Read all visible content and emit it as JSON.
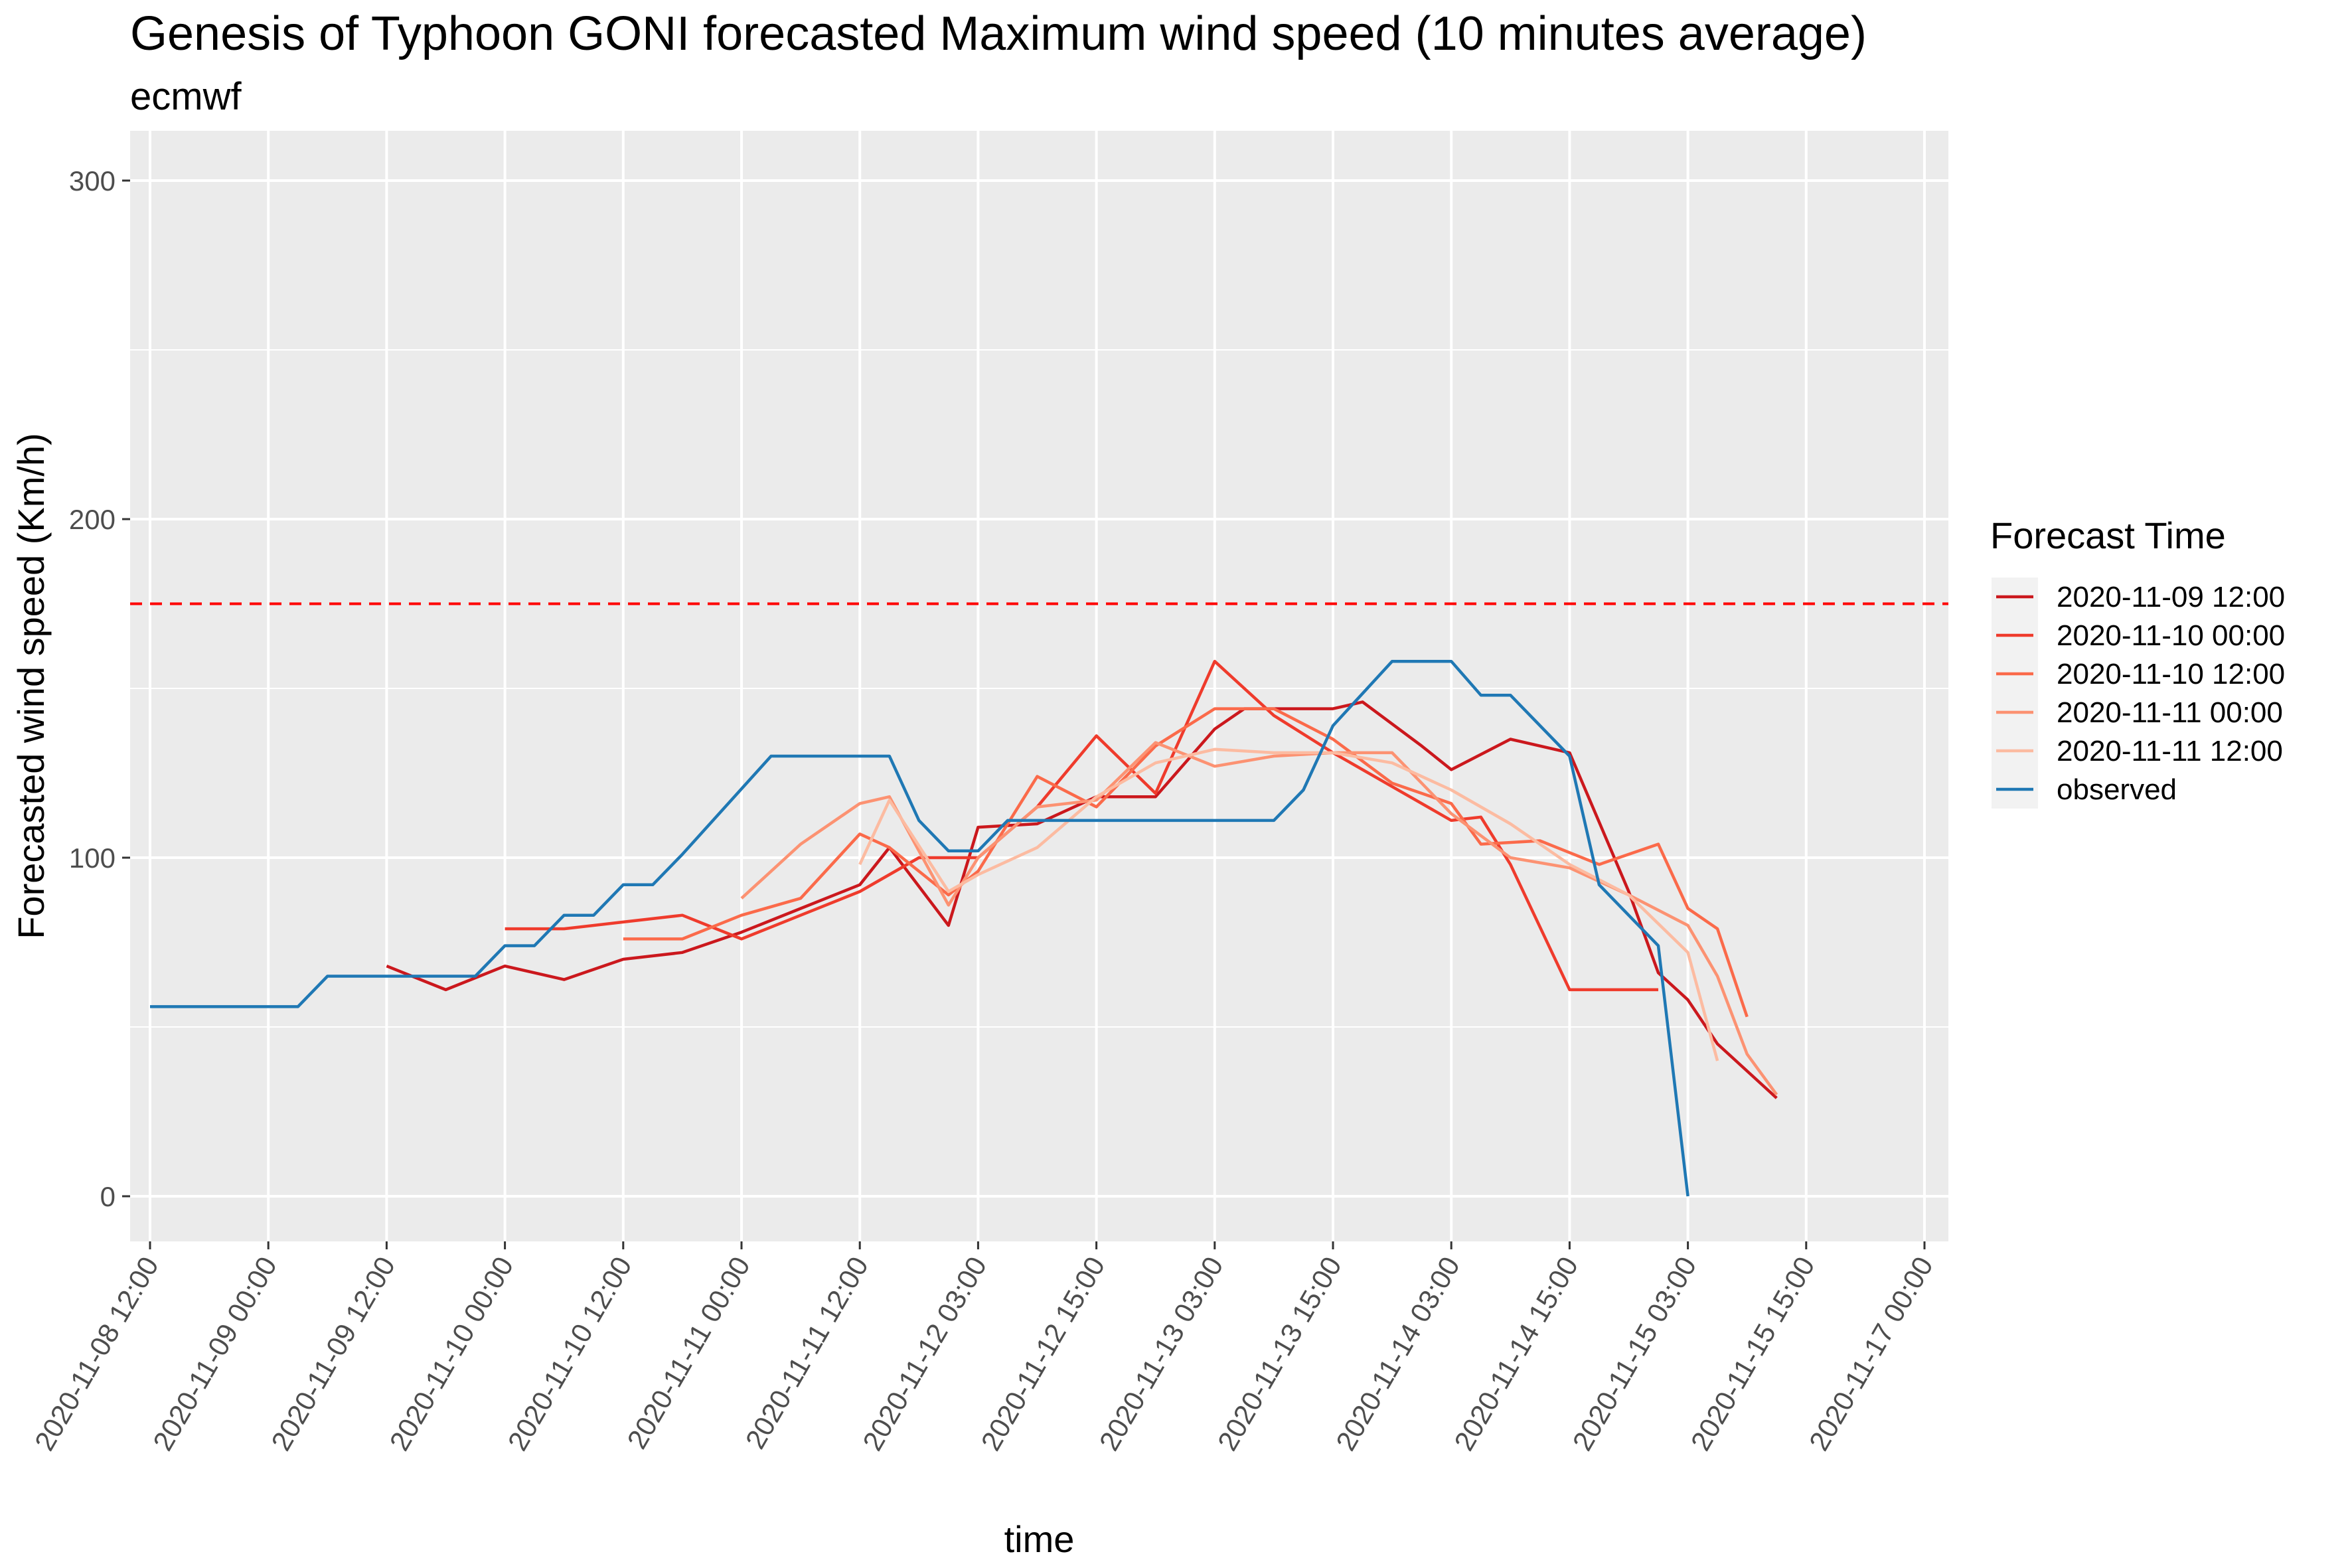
{
  "chart_data": {
    "type": "line",
    "title": "Genesis of Typhoon GONI forecasted Maximum wind speed (10 minutes average)",
    "subtitle": "ecmwf",
    "xlabel": "time",
    "ylabel": "Forecasted wind speed (Km/h)",
    "ylim": [
      -14,
      314
    ],
    "y_ticks": [
      0,
      100,
      200,
      300
    ],
    "x_ticks": [
      "2020-11-08 12:00",
      "2020-11-09 00:00",
      "2020-11-09 12:00",
      "2020-11-10 00:00",
      "2020-11-10 12:00",
      "2020-11-11 00:00",
      "2020-11-11 12:00",
      "2020-11-12 03:00",
      "2020-11-12 15:00",
      "2020-11-13 03:00",
      "2020-11-13 15:00",
      "2020-11-14 03:00",
      "2020-11-14 15:00",
      "2020-11-15 03:00",
      "2020-11-15 15:00",
      "2020-11-17 00:00"
    ],
    "threshold": {
      "value": 175,
      "color": "#ff0000",
      "style": "dashed"
    },
    "grid": true,
    "legend_title": "Forecast Time",
    "legend_position": "right",
    "background": "#ebebeb",
    "series": [
      {
        "name": "2020-11-09  12:00",
        "color": "#cb181d",
        "x": [
          2,
          2.5,
          3,
          3.5,
          4,
          4.5,
          5,
          5.5,
          6,
          6.25,
          6.75,
          7,
          7.5,
          8,
          8.5,
          9,
          9.25,
          9.75,
          10,
          10.25,
          10.75,
          11,
          11.5,
          12,
          12.5,
          12.75,
          13,
          13.25,
          13.75,
          14.25,
          14.5
        ],
        "y": [
          68,
          61,
          68,
          64,
          70,
          72,
          78,
          85,
          92,
          103,
          80,
          109,
          110,
          118,
          118,
          138,
          144,
          144,
          144,
          146,
          133,
          126,
          135,
          131,
          90,
          66,
          58,
          45,
          29,
          null,
          null
        ]
      },
      {
        "name": "2020-11-10  00:00",
        "color": "#ef3b2c",
        "x": [
          3,
          3.5,
          4,
          4.5,
          5,
          5.5,
          6,
          6.5,
          7,
          7.5,
          8,
          8.5,
          9,
          9.5,
          10,
          10.5,
          11,
          11.25,
          11.5,
          12,
          12.25,
          12.75
        ],
        "y": [
          79,
          79,
          81,
          83,
          76,
          83,
          90,
          100,
          100,
          115,
          136,
          119,
          158,
          142,
          131,
          121,
          111,
          112,
          98,
          61,
          61,
          61
        ]
      },
      {
        "name": "2020-11-10  12:00",
        "color": "#fb6a4a",
        "x": [
          4,
          4.5,
          5,
          5.5,
          6,
          6.25,
          6.75,
          7,
          7.5,
          8,
          8.5,
          9,
          9.5,
          10,
          10.5,
          11,
          11.25,
          11.75,
          12.25,
          12.75,
          13,
          13.25,
          13.5
        ],
        "y": [
          76,
          76,
          83,
          88,
          107,
          103,
          89,
          96,
          124,
          115,
          133,
          144,
          144,
          135,
          122,
          116,
          104,
          105,
          98,
          104,
          85,
          79,
          53
        ]
      },
      {
        "name": "2020-11-11  00:00",
        "color": "#fc9272",
        "x": [
          5,
          5.5,
          6,
          6.25,
          6.75,
          7,
          7.5,
          8,
          8.5,
          9,
          9.5,
          10,
          10.5,
          11,
          11.5,
          12,
          12.5,
          13,
          13.25,
          13.5,
          13.75
        ],
        "y": [
          88,
          104,
          116,
          118,
          86,
          100,
          115,
          117,
          134,
          127,
          130,
          131,
          131,
          113,
          100,
          97,
          89,
          80,
          65,
          42,
          30
        ]
      },
      {
        "name": "2020-11-11  12:00",
        "color": "#fcbba1",
        "x": [
          6,
          6.25,
          6.75,
          7,
          7.5,
          8,
          8.5,
          9,
          9.5,
          10,
          10.5,
          11,
          11.5,
          12,
          12.5,
          13,
          13.25
        ],
        "y": [
          98,
          117,
          90,
          95,
          103,
          118,
          128,
          132,
          131,
          131,
          128,
          120,
          110,
          98,
          89,
          72,
          40
        ]
      },
      {
        "name": "observed",
        "color": "#1f78b4",
        "x": [
          0,
          1.25,
          1.5,
          2.5,
          2.75,
          3,
          3.25,
          3.5,
          3.75,
          4,
          4.25,
          4.5,
          5.25,
          6.25,
          6.5,
          6.75,
          7,
          7.25,
          8,
          9.5,
          9.75,
          10,
          10.5,
          11,
          11.25,
          11.5,
          12,
          12.25,
          12.75,
          13
        ],
        "y": [
          56,
          56,
          65,
          65,
          65,
          74,
          74,
          83,
          83,
          92,
          92,
          101,
          130,
          130,
          111,
          102,
          102,
          111,
          111,
          111,
          120,
          139,
          158,
          158,
          148,
          148,
          130,
          92,
          74,
          0
        ]
      }
    ]
  }
}
